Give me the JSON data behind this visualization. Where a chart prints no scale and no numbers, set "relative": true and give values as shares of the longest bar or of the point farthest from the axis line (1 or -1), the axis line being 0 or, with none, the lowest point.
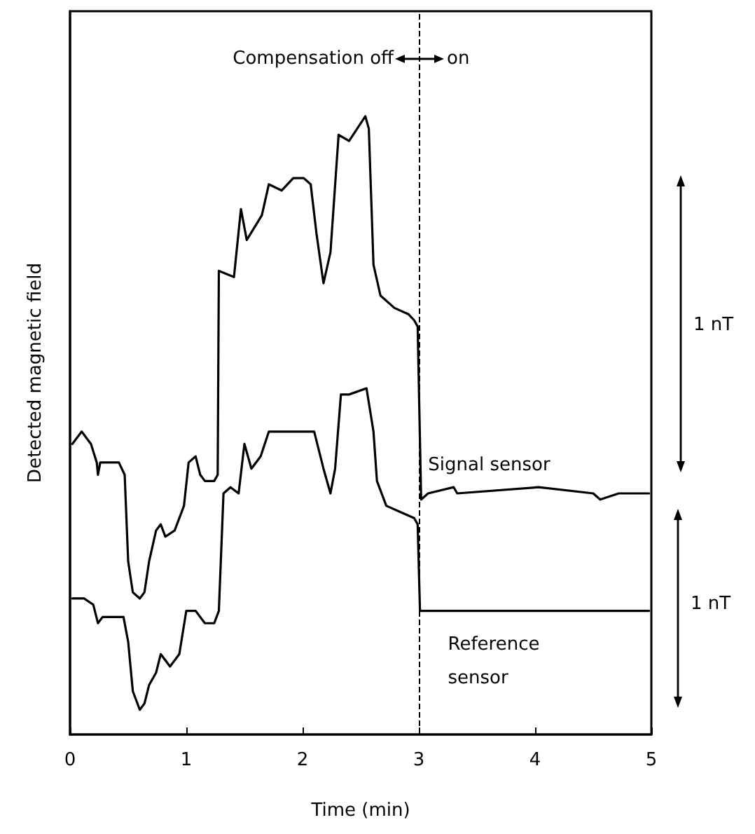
{
  "chart_data": {
    "type": "line",
    "relative": true,
    "xlabel": "Time (min)",
    "ylabel": "Detected magnetic field",
    "xlim": [
      0,
      5
    ],
    "xticks": [
      0,
      1,
      2,
      3,
      4,
      5
    ],
    "grid": false,
    "legend": false,
    "marker": "none",
    "line_style": "solid",
    "annotations": [
      "Compensation off",
      "on",
      "1 nT",
      "1 nT"
    ],
    "ref_lines": [
      {
        "axis": "x",
        "value": 3,
        "label": null,
        "line_style": "dashed",
        "color": "#000000"
      }
    ],
    "series": [
      {
        "name": "Signal sensor",
        "color": "#000000",
        "x": [
          0.02,
          0.1,
          0.18,
          0.23,
          0.24,
          0.26,
          0.42,
          0.47,
          0.5,
          0.54,
          0.6,
          0.64,
          0.68,
          0.74,
          0.78,
          0.82,
          0.9,
          0.98,
          1.02,
          1.08,
          1.12,
          1.16,
          1.24,
          1.27,
          1.28,
          1.41,
          1.47,
          1.52,
          1.65,
          1.71,
          1.82,
          1.92,
          2.01,
          2.07,
          2.12,
          2.18,
          2.24,
          2.31,
          2.4,
          2.54,
          2.57,
          2.61,
          2.67,
          2.79,
          2.91,
          2.96,
          2.99,
          3.02,
          3.08,
          3.3,
          3.33,
          4.03,
          4.5,
          4.56,
          4.72,
          4.98
        ],
        "values": [
          0.47,
          0.49,
          0.47,
          0.44,
          0.42,
          0.44,
          0.44,
          0.42,
          0.28,
          0.23,
          0.22,
          0.23,
          0.28,
          0.33,
          0.34,
          0.32,
          0.33,
          0.37,
          0.44,
          0.45,
          0.42,
          0.41,
          0.41,
          0.42,
          0.75,
          0.74,
          0.85,
          0.8,
          0.84,
          0.89,
          0.88,
          0.9,
          0.9,
          0.89,
          0.81,
          0.73,
          0.78,
          0.97,
          0.96,
          1,
          0.98,
          0.76,
          0.71,
          0.69,
          0.68,
          0.67,
          0.66,
          0.38,
          0.39,
          0.4,
          0.39,
          0.4,
          0.39,
          0.38,
          0.39,
          0.39
        ]
      },
      {
        "name": "Reference sensor",
        "color": "#000000",
        "x": [
          0.02,
          0.12,
          0.2,
          0.24,
          0.28,
          0.46,
          0.5,
          0.54,
          0.6,
          0.64,
          0.68,
          0.74,
          0.78,
          0.86,
          0.94,
          1,
          1.08,
          1.16,
          1.24,
          1.28,
          1.32,
          1.38,
          1.45,
          1.5,
          1.56,
          1.64,
          1.71,
          1.83,
          1.89,
          2.1,
          2.18,
          2.24,
          2.28,
          2.33,
          2.4,
          2.55,
          2.61,
          2.64,
          2.72,
          2.84,
          2.96,
          2.99,
          3.01,
          4.98
        ],
        "values": [
          0.22,
          0.22,
          0.21,
          0.18,
          0.19,
          0.19,
          0.15,
          0.07,
          0.04,
          0.05,
          0.08,
          0.1,
          0.13,
          0.11,
          0.13,
          0.2,
          0.2,
          0.18,
          0.18,
          0.2,
          0.39,
          0.4,
          0.39,
          0.47,
          0.43,
          0.45,
          0.49,
          0.49,
          0.49,
          0.49,
          0.43,
          0.39,
          0.43,
          0.55,
          0.55,
          0.56,
          0.49,
          0.41,
          0.37,
          0.36,
          0.35,
          0.34,
          0.2,
          0.2
        ]
      }
    ]
  }
}
